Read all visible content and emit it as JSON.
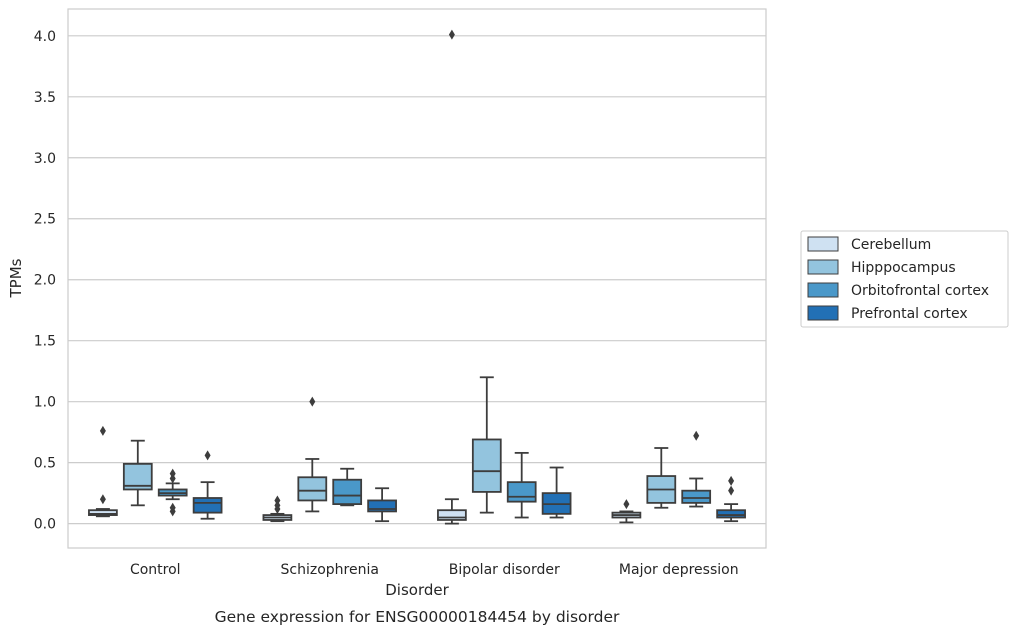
{
  "chart_data": {
    "type": "box",
    "xlabel": "Disorder",
    "ylabel": "TPMs",
    "caption": "Gene expression for ENSG00000184454 by disorder",
    "ylim": [
      -0.2,
      4.22
    ],
    "yticks": [
      0.0,
      0.5,
      1.0,
      1.5,
      2.0,
      2.5,
      3.0,
      3.5,
      4.0
    ],
    "ytick_labels": [
      "0.0",
      "0.5",
      "1.0",
      "1.5",
      "2.0",
      "2.5",
      "3.0",
      "3.5",
      "4.0"
    ],
    "grid": "horizontal",
    "legend_position": "right",
    "categories": [
      "Control",
      "Schizophrenia",
      "Bipolar disorder",
      "Major depression"
    ],
    "series": [
      {
        "name": "Cerebellum",
        "color": "#cfe1f2",
        "boxes": [
          {
            "whislo": 0.06,
            "q1": 0.07,
            "med": 0.08,
            "q3": 0.11,
            "whishi": 0.12,
            "fliers": [
              0.2,
              0.76
            ]
          },
          {
            "whislo": 0.02,
            "q1": 0.03,
            "med": 0.05,
            "q3": 0.07,
            "whishi": 0.08,
            "fliers": [
              0.12,
              0.15,
              0.19
            ]
          },
          {
            "whislo": 0.0,
            "q1": 0.03,
            "med": 0.05,
            "q3": 0.11,
            "whishi": 0.2,
            "fliers": [
              4.01
            ]
          },
          {
            "whislo": 0.01,
            "q1": 0.05,
            "med": 0.07,
            "q3": 0.09,
            "whishi": 0.1,
            "fliers": [
              0.16
            ]
          }
        ]
      },
      {
        "name": "Hipppocampus",
        "color": "#93c4de",
        "boxes": [
          {
            "whislo": 0.15,
            "q1": 0.28,
            "med": 0.31,
            "q3": 0.49,
            "whishi": 0.68,
            "fliers": []
          },
          {
            "whislo": 0.1,
            "q1": 0.19,
            "med": 0.27,
            "q3": 0.38,
            "whishi": 0.53,
            "fliers": [
              1.0
            ]
          },
          {
            "whislo": 0.09,
            "q1": 0.26,
            "med": 0.43,
            "q3": 0.69,
            "whishi": 1.2,
            "fliers": []
          },
          {
            "whislo": 0.13,
            "q1": 0.17,
            "med": 0.28,
            "q3": 0.39,
            "whishi": 0.62,
            "fliers": []
          }
        ]
      },
      {
        "name": "Orbitofrontal cortex",
        "color": "#4a98c9",
        "boxes": [
          {
            "whislo": 0.2,
            "q1": 0.23,
            "med": 0.25,
            "q3": 0.28,
            "whishi": 0.33,
            "fliers": [
              0.1,
              0.13,
              0.37,
              0.41
            ]
          },
          {
            "whislo": 0.15,
            "q1": 0.16,
            "med": 0.23,
            "q3": 0.36,
            "whishi": 0.45,
            "fliers": []
          },
          {
            "whislo": 0.05,
            "q1": 0.18,
            "med": 0.22,
            "q3": 0.34,
            "whishi": 0.58,
            "fliers": []
          },
          {
            "whislo": 0.14,
            "q1": 0.17,
            "med": 0.21,
            "q3": 0.27,
            "whishi": 0.37,
            "fliers": [
              0.72
            ]
          }
        ]
      },
      {
        "name": "Prefrontal cortex",
        "color": "#2270b5",
        "boxes": [
          {
            "whislo": 0.04,
            "q1": 0.09,
            "med": 0.17,
            "q3": 0.21,
            "whishi": 0.34,
            "fliers": [
              0.56
            ]
          },
          {
            "whislo": 0.02,
            "q1": 0.1,
            "med": 0.12,
            "q3": 0.19,
            "whishi": 0.29,
            "fliers": []
          },
          {
            "whislo": 0.05,
            "q1": 0.08,
            "med": 0.16,
            "q3": 0.25,
            "whishi": 0.46,
            "fliers": []
          },
          {
            "whislo": 0.02,
            "q1": 0.05,
            "med": 0.07,
            "q3": 0.11,
            "whishi": 0.16,
            "fliers": [
              0.27,
              0.35
            ]
          }
        ]
      }
    ]
  }
}
